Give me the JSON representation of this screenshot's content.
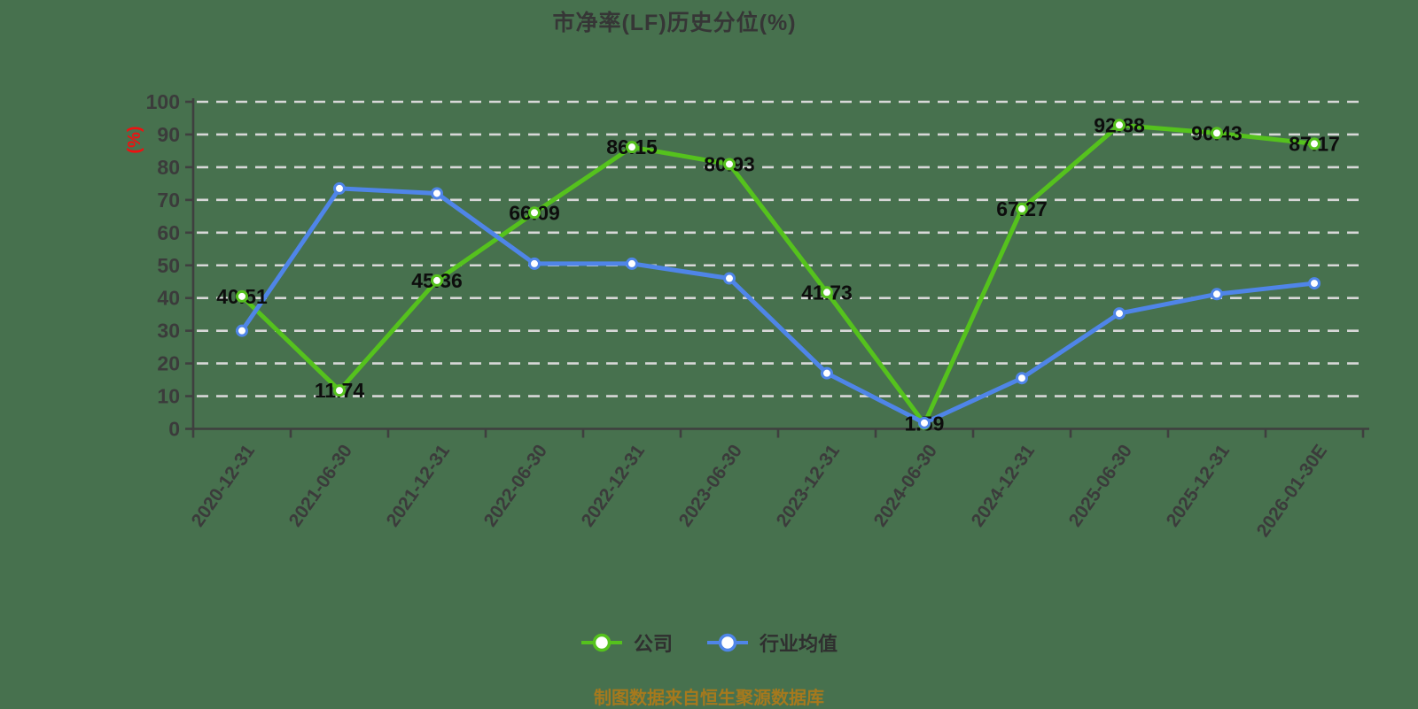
{
  "title": "市净率(LF)历史分位(%)",
  "source_note": "制图数据来自恒生聚源数据库",
  "legend": [
    {
      "label": "公司",
      "color": "#55c21d"
    },
    {
      "label": "行业均值",
      "color": "#4f85e8"
    }
  ],
  "colors": {
    "background": "#47714e",
    "grid_line": "#d8d8d8",
    "axis_line": "#3f3f3f",
    "tick_label": "#3b3b3b",
    "data_label": "#0d0d0d",
    "axis_unit": "#ee1111",
    "series_company": "#55c21d",
    "series_industry": "#4f85e8",
    "source_text": "#a6791d"
  },
  "chart_data": {
    "type": "line",
    "title": "市净率(LF)历史分位(%)",
    "ylabel": "(%)",
    "ylim": [
      0,
      100
    ],
    "yticks": [
      0,
      10,
      20,
      30,
      40,
      50,
      60,
      70,
      80,
      90,
      100
    ],
    "grid": "horizontal-dashed-white",
    "legend_position": "bottom",
    "categories": [
      "2020-12-31",
      "2021-06-30",
      "2021-12-31",
      "2022-06-30",
      "2022-12-31",
      "2023-06-30",
      "2023-12-31",
      "2024-06-30",
      "2024-12-31",
      "2025-06-30",
      "2025-12-31",
      "2026-01-30E"
    ],
    "series": [
      {
        "name": "公司",
        "color": "#55c21d",
        "show_labels": true,
        "values": [
          40.51,
          11.74,
          45.36,
          66.09,
          86.15,
          80.93,
          41.73,
          1.59,
          67.27,
          92.88,
          90.43,
          87.17
        ]
      },
      {
        "name": "行业均值",
        "color": "#4f85e8",
        "show_labels": false,
        "values": [
          30,
          73.5,
          72,
          50.5,
          50.5,
          46,
          17,
          1.8,
          15.5,
          35.3,
          41.2,
          44.5
        ]
      }
    ]
  }
}
